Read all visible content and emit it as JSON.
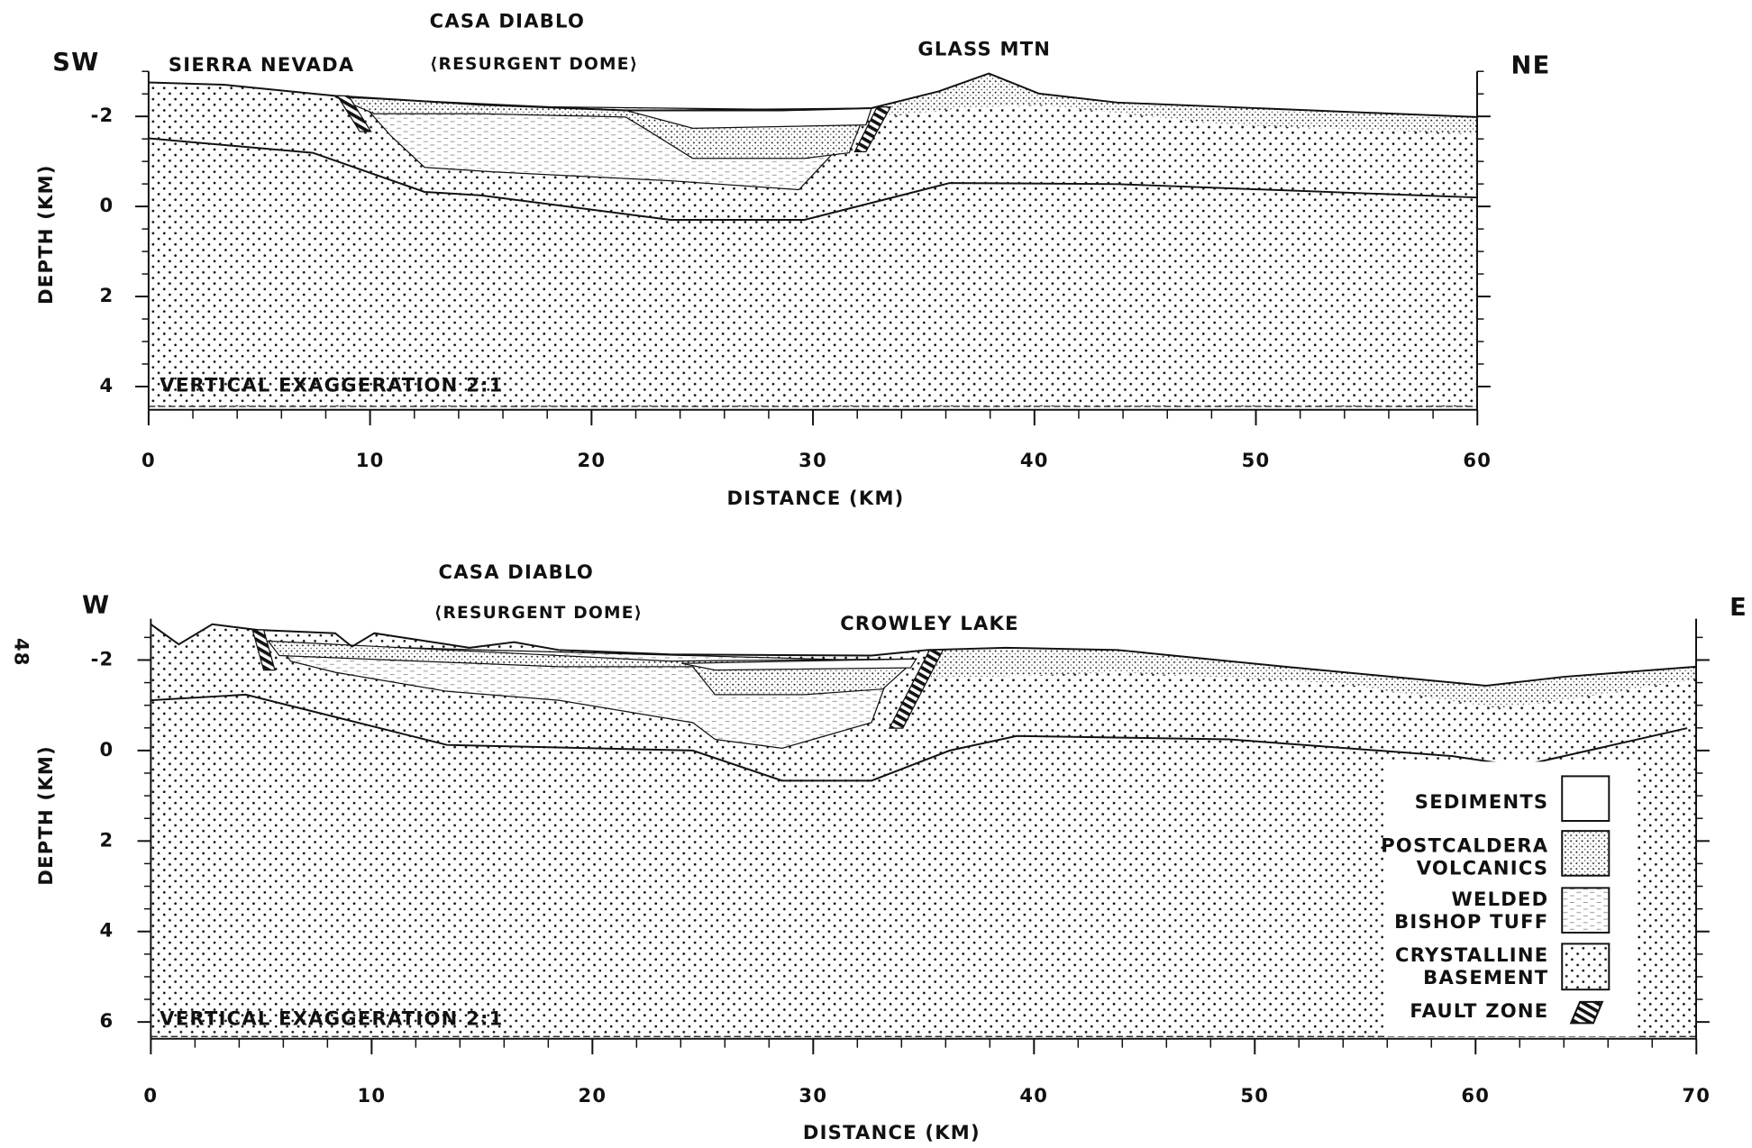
{
  "figure_number": "48",
  "panels": [
    {
      "left_direction": "SW",
      "right_direction": "NE",
      "annotations": [
        "SIERRA NEVADA",
        "CASA DIABLO",
        "⟨RESURGENT DOME⟩",
        "GLASS MTN"
      ],
      "note": "VERTICAL EXAGGERATION 2:1",
      "x_axis_title": "DISTANCE (KM)",
      "y_axis_title": "DEPTH (KM)",
      "x_ticks": [
        0,
        10,
        20,
        30,
        40,
        50,
        60
      ],
      "y_ticks": [
        -2,
        0,
        2,
        4
      ]
    },
    {
      "left_direction": "W",
      "right_direction": "E",
      "annotations": [
        "CASA DIABLO",
        "⟨RESURGENT DOME⟩",
        "CROWLEY LAKE"
      ],
      "note": "VERTICAL EXAGGERATION 2:1",
      "x_axis_title": "DISTANCE (KM)",
      "y_axis_title": "DEPTH (KM)",
      "x_ticks": [
        0,
        10,
        20,
        30,
        40,
        50,
        60,
        70
      ],
      "y_ticks": [
        -2,
        0,
        2,
        4,
        6
      ]
    }
  ],
  "legend": [
    {
      "lines": [
        "SEDIMENTS"
      ]
    },
    {
      "lines": [
        "POSTCALDERA",
        "VOLCANICS"
      ]
    },
    {
      "lines": [
        "WELDED",
        "BISHOP TUFF"
      ]
    },
    {
      "lines": [
        "CRYSTALLINE",
        "BASEMENT"
      ]
    },
    {
      "lines": [
        "FAULT ZONE"
      ]
    }
  ]
}
